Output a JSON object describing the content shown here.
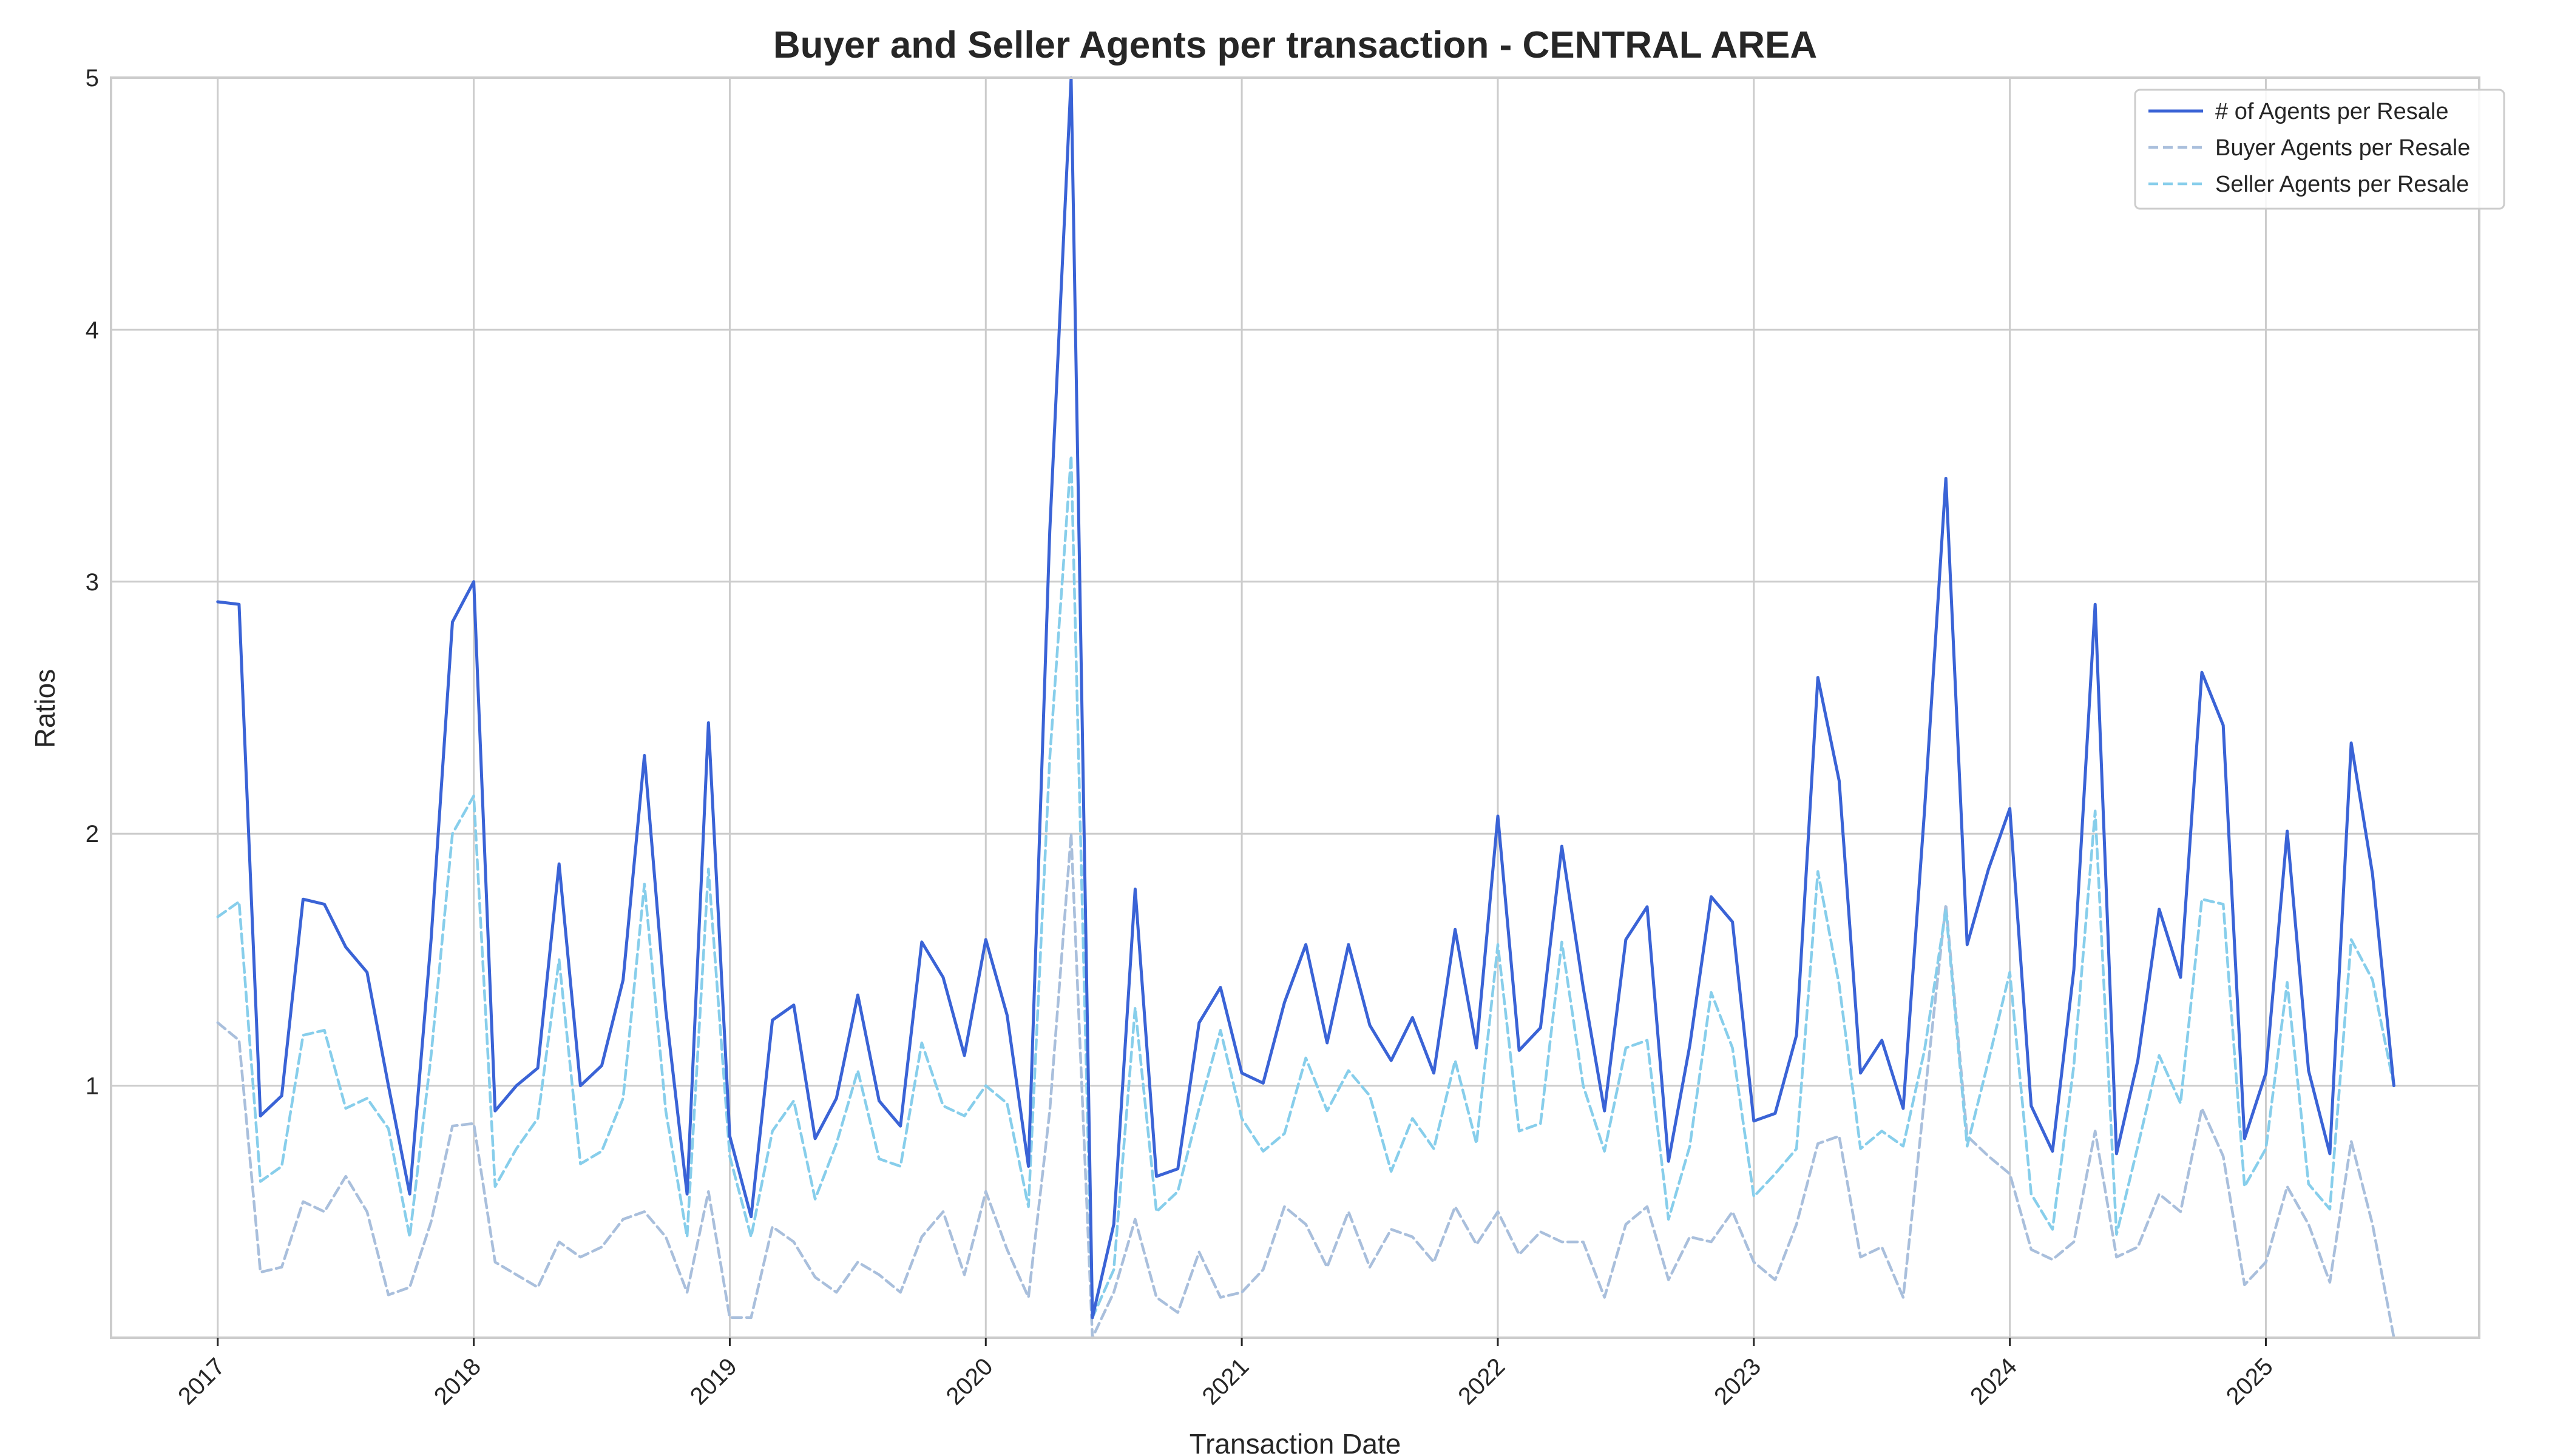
{
  "chart_data": {
    "type": "line",
    "title": "Buyer and Seller Agents per transaction - CENTRAL AREA",
    "xlabel": "Transaction Date",
    "ylabel": "Ratios",
    "ylim": [
      0.0,
      5.0
    ],
    "xlim": [
      "2016-08",
      "2025-11"
    ],
    "yticks": [
      "1",
      "2",
      "3",
      "4",
      "5"
    ],
    "xticks": [
      "2017",
      "2018",
      "2019",
      "2020",
      "2021",
      "2022",
      "2023",
      "2024",
      "2025"
    ],
    "grid": true,
    "legend_position": "top-right",
    "start_month": "2017-01",
    "series": [
      {
        "name": "# of Agents per Resale",
        "color": "#3a63d6",
        "style": "solid",
        "values": [
          2.92,
          2.91,
          0.88,
          0.96,
          1.74,
          1.72,
          1.55,
          1.45,
          1.0,
          0.57,
          1.58,
          2.84,
          3.0,
          0.9,
          1.0,
          1.07,
          1.88,
          1.0,
          1.08,
          1.42,
          2.31,
          1.3,
          0.57,
          2.44,
          0.8,
          0.48,
          1.26,
          1.32,
          0.79,
          0.95,
          1.36,
          0.94,
          0.84,
          1.57,
          1.43,
          1.12,
          1.58,
          1.28,
          0.68,
          3.2,
          5.0,
          0.08,
          0.45,
          1.78,
          0.64,
          0.67,
          1.25,
          1.39,
          1.05,
          1.01,
          1.33,
          1.56,
          1.17,
          1.56,
          1.24,
          1.1,
          1.27,
          1.05,
          1.62,
          1.15,
          2.07,
          1.14,
          1.23,
          1.95,
          1.39,
          0.9,
          1.58,
          1.71,
          0.7,
          1.16,
          1.75,
          1.65,
          0.86,
          0.89,
          1.2,
          2.62,
          2.21,
          1.05,
          1.18,
          0.91,
          2.09,
          3.41,
          1.56,
          1.86,
          2.1,
          0.92,
          0.74,
          1.46,
          2.91,
          0.73,
          1.1,
          1.7,
          1.43,
          2.64,
          2.43,
          0.79,
          1.05,
          2.01,
          1.06,
          0.73,
          2.36,
          1.84,
          1.0
        ]
      },
      {
        "name": "Buyer Agents per Resale",
        "color": "#a9bfdc",
        "style": "dashed",
        "values": [
          1.25,
          1.18,
          0.26,
          0.28,
          0.54,
          0.5,
          0.64,
          0.5,
          0.17,
          0.2,
          0.46,
          0.84,
          0.85,
          0.3,
          0.25,
          0.2,
          0.38,
          0.32,
          0.36,
          0.47,
          0.5,
          0.4,
          0.18,
          0.58,
          0.08,
          0.08,
          0.44,
          0.38,
          0.24,
          0.18,
          0.3,
          0.25,
          0.18,
          0.4,
          0.5,
          0.25,
          0.58,
          0.35,
          0.16,
          0.9,
          2.0,
          0.0,
          0.18,
          0.47,
          0.16,
          0.1,
          0.34,
          0.16,
          0.18,
          0.27,
          0.52,
          0.45,
          0.28,
          0.5,
          0.28,
          0.43,
          0.4,
          0.3,
          0.52,
          0.37,
          0.5,
          0.33,
          0.42,
          0.38,
          0.38,
          0.16,
          0.45,
          0.52,
          0.23,
          0.4,
          0.38,
          0.5,
          0.3,
          0.23,
          0.45,
          0.77,
          0.8,
          0.32,
          0.36,
          0.16,
          0.95,
          1.72,
          0.8,
          0.72,
          0.65,
          0.35,
          0.31,
          0.38,
          0.82,
          0.32,
          0.36,
          0.57,
          0.5,
          0.91,
          0.72,
          0.21,
          0.3,
          0.6,
          0.45,
          0.22,
          0.78,
          0.45,
          0.0
        ]
      },
      {
        "name": "Seller Agents per Resale",
        "color": "#87ceeb",
        "style": "dashed",
        "values": [
          1.67,
          1.73,
          0.62,
          0.68,
          1.2,
          1.22,
          0.91,
          0.95,
          0.83,
          0.4,
          1.12,
          2.0,
          2.15,
          0.6,
          0.75,
          0.87,
          1.5,
          0.69,
          0.74,
          0.95,
          1.8,
          0.9,
          0.4,
          1.86,
          0.72,
          0.4,
          0.82,
          0.94,
          0.55,
          0.77,
          1.06,
          0.71,
          0.68,
          1.17,
          0.92,
          0.88,
          1.0,
          0.93,
          0.52,
          2.3,
          3.5,
          0.08,
          0.27,
          1.31,
          0.5,
          0.58,
          0.91,
          1.22,
          0.87,
          0.74,
          0.81,
          1.11,
          0.9,
          1.06,
          0.96,
          0.66,
          0.87,
          0.75,
          1.1,
          0.77,
          1.56,
          0.82,
          0.85,
          1.57,
          1.0,
          0.74,
          1.15,
          1.18,
          0.47,
          0.76,
          1.37,
          1.15,
          0.56,
          0.65,
          0.75,
          1.85,
          1.4,
          0.75,
          0.82,
          0.76,
          1.14,
          1.7,
          0.76,
          1.1,
          1.45,
          0.57,
          0.43,
          1.08,
          2.09,
          0.41,
          0.76,
          1.12,
          0.93,
          1.74,
          1.72,
          0.6,
          0.75,
          1.41,
          0.61,
          0.51,
          1.58,
          1.42,
          1.0
        ]
      }
    ]
  }
}
